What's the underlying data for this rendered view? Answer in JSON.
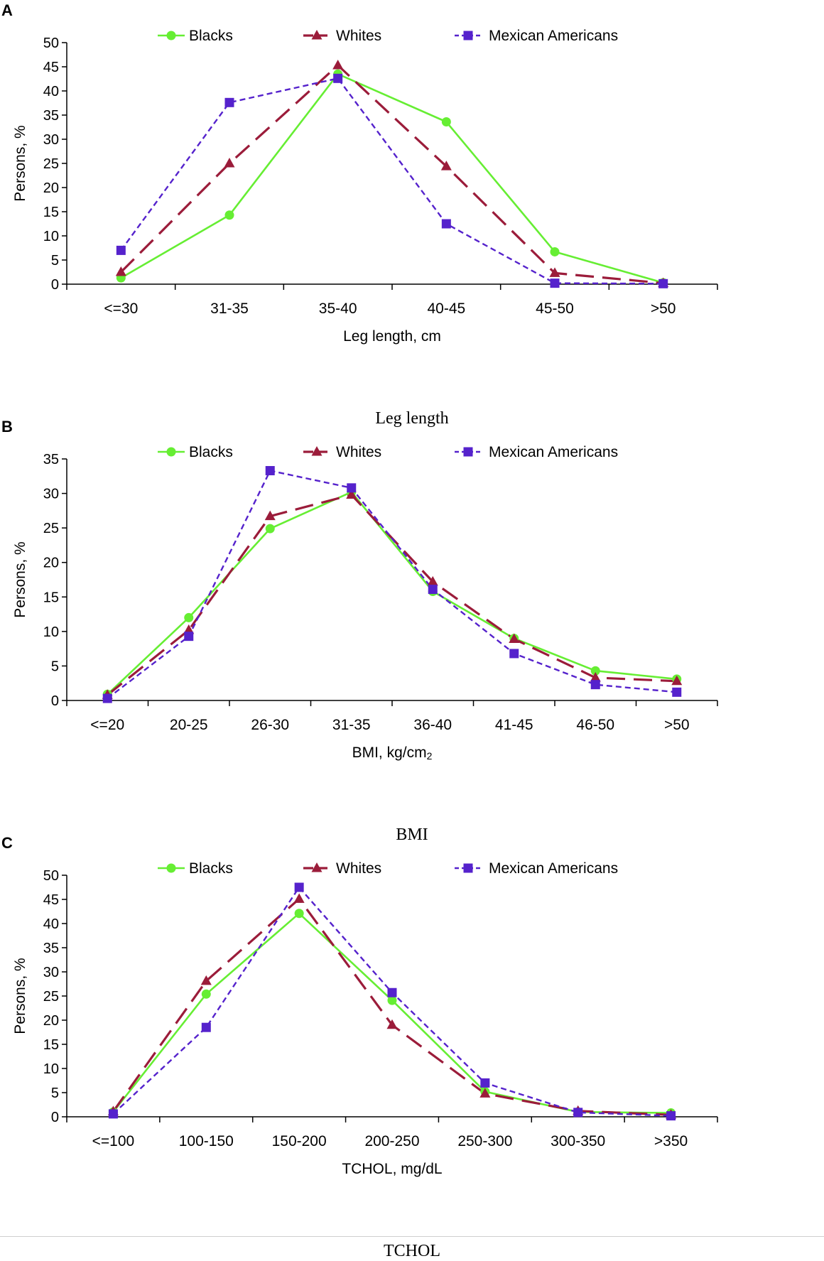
{
  "colors": {
    "blacks": "#66ee33",
    "whites": "#9b1c3a",
    "mexican": "#5522cc",
    "axis": "#000000"
  },
  "chart_data": [
    {
      "panel_letter": "A",
      "type": "line",
      "caption": "Leg length",
      "xlabel": "Leg length, cm",
      "xlabel_sub": "",
      "ylabel": "Persons, %",
      "ylim": [
        0,
        50
      ],
      "ystep": 5,
      "yticks": [
        "0",
        "5",
        "10",
        "15",
        "20",
        "25",
        "30",
        "35",
        "40",
        "45",
        "50"
      ],
      "categories": [
        "<=30",
        "31-35",
        "35-40",
        "40-45",
        "45-50",
        ">50"
      ],
      "legend_position": "top",
      "series": [
        {
          "name": "Blacks",
          "style": "solid-circle",
          "values": [
            1.3,
            14.3,
            43.5,
            33.6,
            6.7,
            0.3
          ]
        },
        {
          "name": "Whites",
          "style": "long-dash-triangle",
          "values": [
            2.5,
            25.0,
            45.3,
            24.4,
            2.3,
            0.2
          ]
        },
        {
          "name": "Mexican Americans",
          "style": "short-dash-square",
          "values": [
            7.0,
            37.6,
            42.6,
            12.5,
            0.2,
            0.1
          ]
        }
      ]
    },
    {
      "panel_letter": "B",
      "type": "line",
      "caption": "BMI",
      "xlabel": "BMI, kg/cm",
      "xlabel_sub": "2",
      "ylabel": "Persons, %",
      "ylim": [
        0,
        35
      ],
      "ystep": 5,
      "yticks": [
        "0",
        "5",
        "10",
        "15",
        "20",
        "25",
        "30",
        "35"
      ],
      "categories": [
        "<=20",
        "20-25",
        "26-30",
        "31-35",
        "36-40",
        "41-45",
        "46-50",
        ">50"
      ],
      "legend_position": "top",
      "series": [
        {
          "name": "Blacks",
          "style": "solid-circle",
          "values": [
            0.9,
            12.0,
            24.9,
            30.2,
            15.8,
            9.0,
            4.3,
            3.1
          ]
        },
        {
          "name": "Whites",
          "style": "long-dash-triangle",
          "values": [
            0.8,
            10.2,
            26.7,
            29.8,
            17.2,
            8.9,
            3.3,
            2.8
          ]
        },
        {
          "name": "Mexican Americans",
          "style": "short-dash-square",
          "values": [
            0.3,
            9.3,
            33.3,
            30.8,
            16.1,
            6.8,
            2.3,
            1.2
          ]
        }
      ]
    },
    {
      "panel_letter": "C",
      "type": "line",
      "caption": "TCHOL",
      "xlabel": "TCHOL, mg/dL",
      "xlabel_sub": "",
      "ylabel": "Persons, %",
      "ylim": [
        0,
        50
      ],
      "ystep": 5,
      "yticks": [
        "0",
        "5",
        "10",
        "15",
        "20",
        "25",
        "30",
        "35",
        "40",
        "45",
        "50"
      ],
      "categories": [
        "<=100",
        "100-150",
        "150-200",
        "200-250",
        "250-300",
        "300-350",
        ">350"
      ],
      "legend_position": "top",
      "series": [
        {
          "name": "Blacks",
          "style": "solid-circle",
          "values": [
            1.0,
            25.4,
            42.1,
            24.1,
            5.2,
            1.0,
            0.8
          ]
        },
        {
          "name": "Whites",
          "style": "long-dash-triangle",
          "values": [
            1.1,
            28.1,
            45.1,
            19.0,
            4.8,
            1.2,
            0.4
          ]
        },
        {
          "name": "Mexican Americans",
          "style": "short-dash-square",
          "values": [
            0.6,
            18.5,
            47.5,
            25.7,
            7.0,
            0.9,
            0.2
          ]
        }
      ]
    }
  ]
}
